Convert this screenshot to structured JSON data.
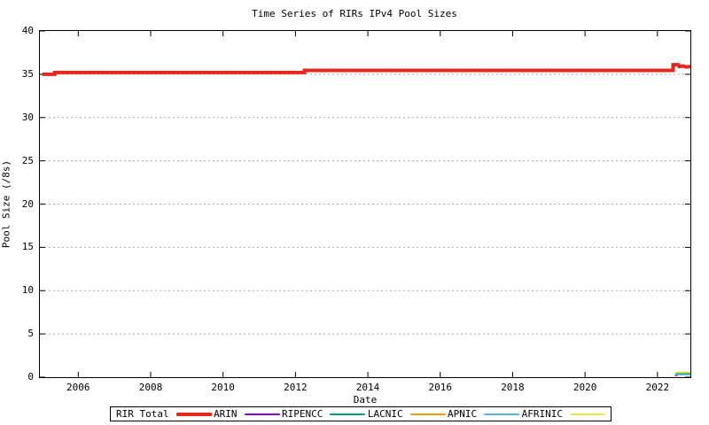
{
  "title": "Time Series of RIRs IPv4 Pool Sizes",
  "chart_data": {
    "type": "line",
    "title": "Time Series of RIRs IPv4 Pool Sizes",
    "xlabel": "Date",
    "ylabel": "Pool Size (/8s)",
    "xlim": [
      2004.94,
      2022.91
    ],
    "ylim": [
      0,
      40
    ],
    "xticks": [
      2006,
      2008,
      2010,
      2012,
      2014,
      2016,
      2018,
      2020,
      2022
    ],
    "yticks": [
      0,
      5,
      10,
      15,
      20,
      25,
      30,
      35,
      40
    ],
    "grid": "horizontal dotted gray lines at y = 5..35",
    "legend_position": "bottom outside, boxed, horizontal",
    "axis_color": "#000000",
    "grid_color": "#a8a8a8",
    "series": [
      {
        "name": "RIR Total",
        "color": "#e4281e",
        "width": 4,
        "points": [
          [
            2005.0,
            35.0
          ],
          [
            2005.35,
            35.0
          ],
          [
            2005.35,
            35.2
          ],
          [
            2012.25,
            35.2
          ],
          [
            2012.25,
            35.45
          ],
          [
            2022.43,
            35.45
          ],
          [
            2022.43,
            36.1
          ],
          [
            2022.58,
            36.1
          ],
          [
            2022.6,
            35.9
          ],
          [
            2022.72,
            35.95
          ],
          [
            2022.78,
            35.85
          ],
          [
            2022.91,
            35.9
          ]
        ]
      },
      {
        "name": "ARIN",
        "color": "#9400d3",
        "width": 1.5,
        "points": [
          [
            2022.48,
            0.2
          ],
          [
            2022.56,
            0.2
          ]
        ]
      },
      {
        "name": "RIPENCC",
        "color": "#009e73",
        "width": 1.5,
        "points": [
          [
            2022.5,
            0.4
          ],
          [
            2022.91,
            0.4
          ]
        ]
      },
      {
        "name": "LACNIC",
        "color": "#e69f00",
        "width": 1.5,
        "points": [
          [
            2022.5,
            0.55
          ],
          [
            2022.91,
            0.55
          ]
        ]
      },
      {
        "name": "APNIC",
        "color": "#56b4e9",
        "width": 1.5,
        "points": [
          [
            2022.5,
            0.3
          ],
          [
            2022.91,
            0.3
          ]
        ]
      },
      {
        "name": "AFRINIC",
        "color": "#f0e442",
        "width": 1.5,
        "points": [
          [
            2022.5,
            0.55
          ],
          [
            2022.91,
            0.55
          ]
        ]
      }
    ]
  }
}
